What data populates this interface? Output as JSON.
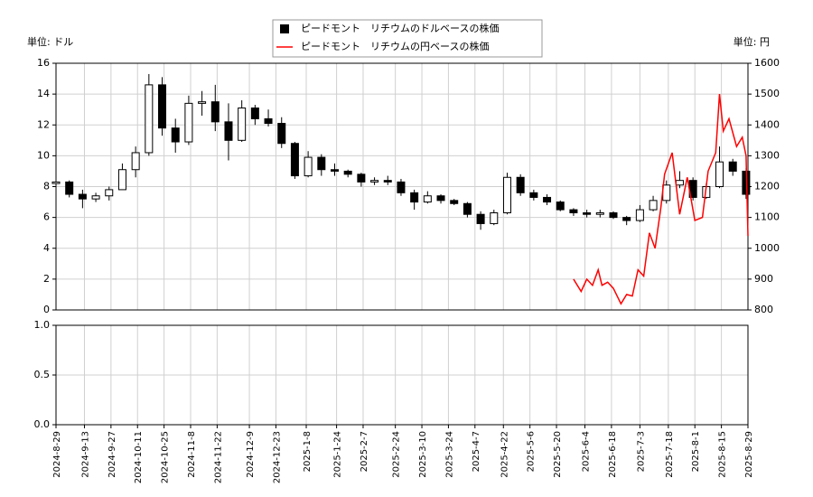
{
  "chart_data": [
    {
      "type": "candlestick",
      "y_label": "単位: ドル",
      "y2_label": "単位: 円",
      "ylim": [
        0,
        16
      ],
      "yticks": [
        0,
        2,
        4,
        6,
        8,
        10,
        12,
        14,
        16
      ],
      "y2lim": [
        800,
        1600
      ],
      "y2ticks": [
        800,
        900,
        1000,
        1100,
        1200,
        1300,
        1400,
        1500,
        1600
      ],
      "grid": true,
      "legend": "top",
      "x": [
        "2024-8-29",
        "2024-9-5",
        "2024-9-12",
        "2024-9-19",
        "2024-9-26",
        "2024-10-3",
        "2024-10-10",
        "2024-10-17",
        "2024-10-24",
        "2024-10-31",
        "2024-11-7",
        "2024-11-14",
        "2024-11-21",
        "2024-11-28",
        "2024-12-5",
        "2024-12-12",
        "2024-12-19",
        "2024-12-26",
        "2025-1-2",
        "2025-1-9",
        "2025-1-16",
        "2025-1-23",
        "2025-1-30",
        "2025-2-6",
        "2025-2-13",
        "2025-2-20",
        "2025-2-27",
        "2025-3-6",
        "2025-3-13",
        "2025-3-20",
        "2025-3-27",
        "2025-4-3",
        "2025-4-10",
        "2025-4-17",
        "2025-4-24",
        "2025-5-1",
        "2025-5-8",
        "2025-5-15",
        "2025-5-22",
        "2025-5-29",
        "2025-6-5",
        "2025-6-12",
        "2025-6-19",
        "2025-6-26",
        "2025-7-3",
        "2025-7-10",
        "2025-7-17",
        "2025-7-24",
        "2025-7-31",
        "2025-8-7",
        "2025-8-14",
        "2025-8-21",
        "2025-8-28"
      ],
      "series": [
        {
          "name": "ピードモント　リチウムのドルベースの株価",
          "color": "#000000",
          "open": [
            8.2,
            8.3,
            7.5,
            7.2,
            7.4,
            7.8,
            9.1,
            10.2,
            14.6,
            11.8,
            10.9,
            13.4,
            13.5,
            12.2,
            11.0,
            13.1,
            12.4,
            12.1,
            10.8,
            8.7,
            9.9,
            9.1,
            9.0,
            8.8,
            8.3,
            8.4,
            8.3,
            7.6,
            7.0,
            7.4,
            7.1,
            6.9,
            6.2,
            5.6,
            6.3,
            8.6,
            7.6,
            7.3,
            7.0,
            6.5,
            6.3,
            6.2,
            6.3,
            6.0,
            5.8,
            6.5,
            7.1,
            8.1,
            8.4,
            7.3,
            8.0,
            9.6,
            9.0
          ],
          "high": [
            8.5,
            8.4,
            7.8,
            7.6,
            8.0,
            9.5,
            10.6,
            15.3,
            15.1,
            12.4,
            13.9,
            14.2,
            14.6,
            13.4,
            13.6,
            13.3,
            13.0,
            12.5,
            10.9,
            10.3,
            10.1,
            9.5,
            9.1,
            8.9,
            8.6,
            8.7,
            8.5,
            7.8,
            7.7,
            7.5,
            7.2,
            7.0,
            6.4,
            6.5,
            8.9,
            8.8,
            7.8,
            7.5,
            7.1,
            6.6,
            6.5,
            6.5,
            6.4,
            6.1,
            6.8,
            7.4,
            8.4,
            9.0,
            8.6,
            8.2,
            10.6,
            9.8,
            9.2
          ],
          "low": [
            8.0,
            7.3,
            6.6,
            7.0,
            7.1,
            7.8,
            8.6,
            10.0,
            11.3,
            10.2,
            10.7,
            12.6,
            11.6,
            9.7,
            10.9,
            12.0,
            11.9,
            10.5,
            8.5,
            8.6,
            8.7,
            8.7,
            8.6,
            8.0,
            8.1,
            8.1,
            7.4,
            6.5,
            6.9,
            6.9,
            6.8,
            6.0,
            5.2,
            5.5,
            6.2,
            7.4,
            7.1,
            6.8,
            6.4,
            6.1,
            6.0,
            6.0,
            5.9,
            5.5,
            5.7,
            6.4,
            6.9,
            7.9,
            7.1,
            7.2,
            7.9,
            8.7,
            7.2
          ],
          "close": [
            8.3,
            7.5,
            7.2,
            7.4,
            7.8,
            9.1,
            10.2,
            14.6,
            11.8,
            10.9,
            13.4,
            13.5,
            12.2,
            11.0,
            13.1,
            12.4,
            12.1,
            10.8,
            8.7,
            9.9,
            9.1,
            9.0,
            8.8,
            8.3,
            8.4,
            8.3,
            7.6,
            7.0,
            7.4,
            7.1,
            6.9,
            6.2,
            5.6,
            6.3,
            8.6,
            7.6,
            7.3,
            7.0,
            6.5,
            6.3,
            6.2,
            6.3,
            6.0,
            5.8,
            6.5,
            7.1,
            8.1,
            8.4,
            7.3,
            8.0,
            9.6,
            9.0,
            7.5
          ]
        },
        {
          "name": "ピードモント　リチウムの円ベースの株価",
          "color": "#ff0000",
          "axis": "y2",
          "x": [
            "2025-5-29",
            "2025-6-2",
            "2025-6-5",
            "2025-6-8",
            "2025-6-11",
            "2025-6-13",
            "2025-6-16",
            "2025-6-19",
            "2025-6-23",
            "2025-6-26",
            "2025-6-29",
            "2025-7-2",
            "2025-7-5",
            "2025-7-8",
            "2025-7-11",
            "2025-7-14",
            "2025-7-16",
            "2025-7-20",
            "2025-7-24",
            "2025-7-28",
            "2025-8-1",
            "2025-8-5",
            "2025-8-8",
            "2025-8-12",
            "2025-8-14",
            "2025-8-16",
            "2025-8-19",
            "2025-8-23",
            "2025-8-26",
            "2025-8-28",
            "2025-8-29"
          ],
          "values": [
            900,
            860,
            900,
            880,
            930,
            880,
            890,
            870,
            820,
            850,
            845,
            930,
            910,
            1050,
            1000,
            1130,
            1240,
            1310,
            1110,
            1230,
            1090,
            1100,
            1250,
            1310,
            1500,
            1380,
            1420,
            1330,
            1360,
            1300,
            1040
          ]
        }
      ]
    },
    {
      "type": "line",
      "ylim": [
        0,
        1
      ],
      "yticks": [
        {
          "value": 0,
          "label": "0.0"
        },
        {
          "value": 0.5,
          "label": "0.5"
        },
        {
          "value": 1,
          "label": "1.0"
        }
      ],
      "xlim": [
        "2024-8-29",
        "2025-8-29"
      ],
      "xticks": [
        "2024-8-29",
        "2024-9-13",
        "2024-9-27",
        "2024-10-11",
        "2024-10-25",
        "2024-11-8",
        "2024-11-22",
        "2024-12-9",
        "2024-12-23",
        "2025-1-8",
        "2025-1-24",
        "2025-2-7",
        "2025-2-24",
        "2025-3-10",
        "2025-3-24",
        "2025-4-7",
        "2025-4-22",
        "2025-5-6",
        "2025-5-20",
        "2025-6-4",
        "2025-6-18",
        "2025-7-3",
        "2025-7-18",
        "2025-8-1",
        "2025-8-15",
        "2025-8-29"
      ],
      "grid": true
    }
  ]
}
